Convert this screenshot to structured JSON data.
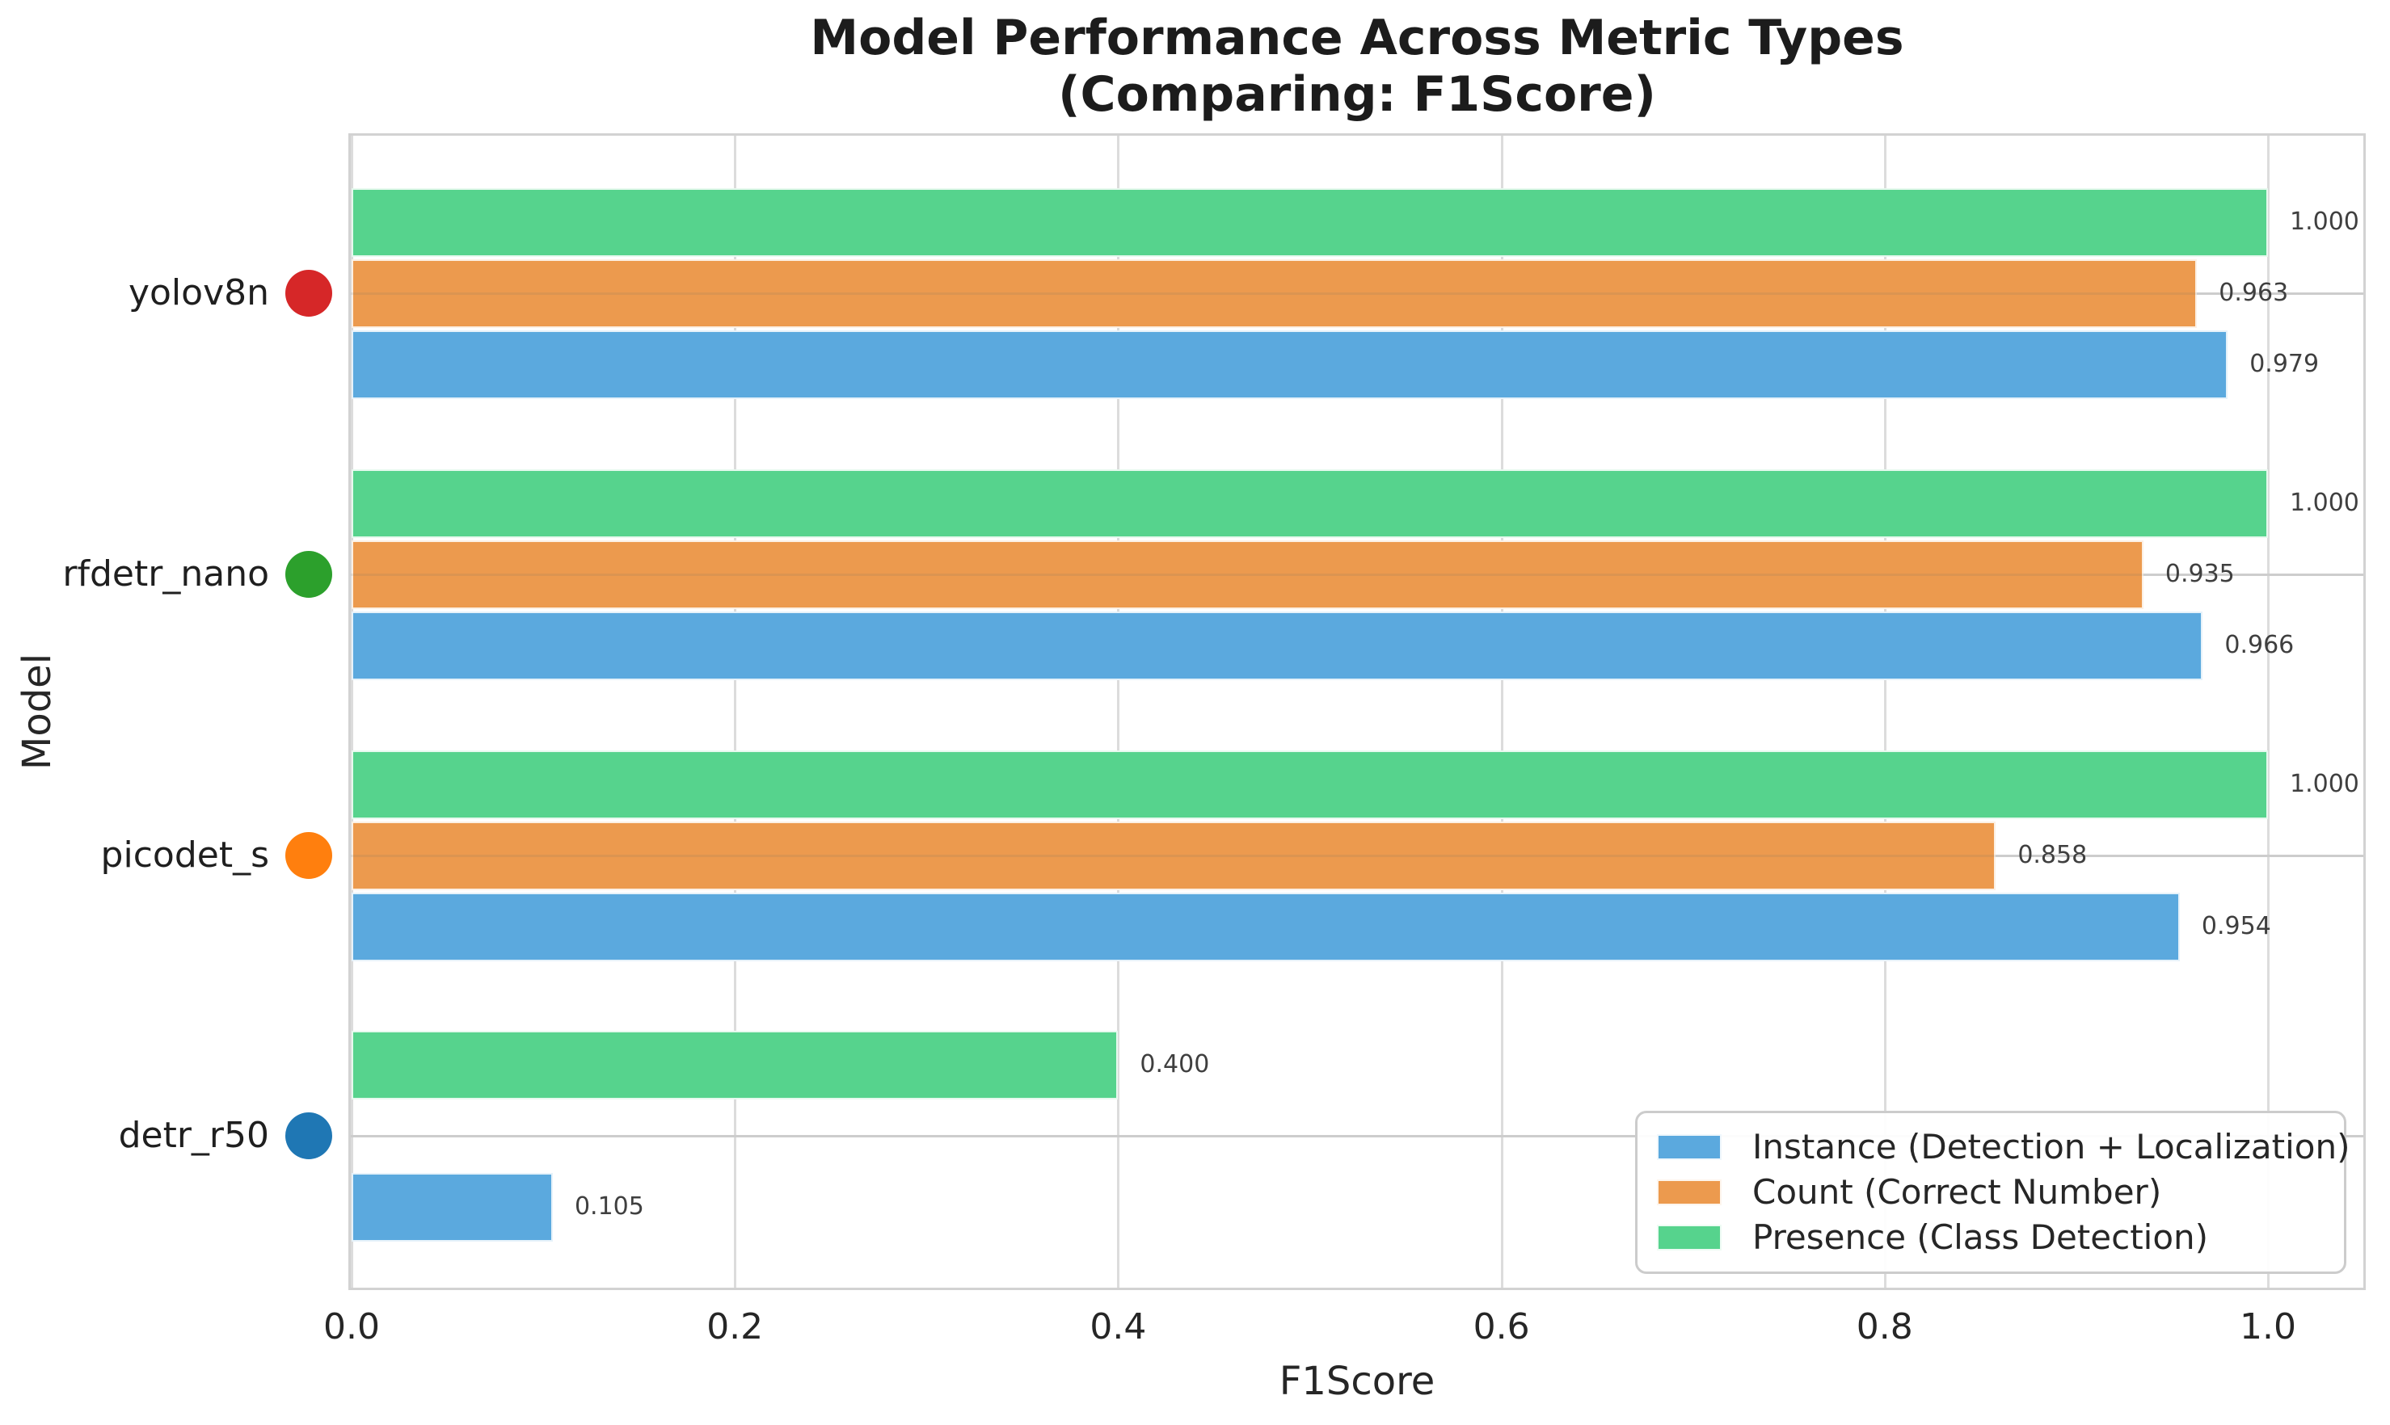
{
  "title": {
    "line1": "Model Performance Across Metric Types",
    "line2": "(Comparing: F1Score)"
  },
  "axes": {
    "xlabel": "F1Score",
    "ylabel": "Model"
  },
  "chart_data": {
    "type": "bar",
    "orientation": "horizontal",
    "title": "Model Performance Across Metric Types (Comparing: F1Score)",
    "xlabel": "F1Score",
    "ylabel": "Model",
    "xlim": [
      0.0,
      1.05
    ],
    "xticks": [
      0.0,
      0.2,
      0.4,
      0.6,
      0.8,
      1.0
    ],
    "xtick_labels": [
      "0.0",
      "0.2",
      "0.4",
      "0.6",
      "0.8",
      "1.0"
    ],
    "grid": true,
    "legend_position": "lower right",
    "categories": [
      "yolov8n",
      "rfdetr_nano",
      "picodet_s",
      "detr_r50"
    ],
    "category_dot_colors": [
      "#d62728",
      "#2ca02c",
      "#ff7f0e",
      "#1f77b4"
    ],
    "bar_row_order_top_to_bottom": [
      "Presence (Class Detection)",
      "Count (Correct Number)",
      "Instance (Detection + Localization)"
    ],
    "series": [
      {
        "name": "Instance (Detection + Localization)",
        "color": "#5BA9DE",
        "values": [
          0.979,
          0.966,
          0.954,
          0.105
        ],
        "labels": [
          "0.979",
          "0.966",
          "0.954",
          "0.105"
        ]
      },
      {
        "name": "Count (Correct Number)",
        "color": "#EC9A4E",
        "values": [
          0.963,
          0.935,
          0.858,
          null
        ],
        "labels": [
          "0.963",
          "0.935",
          "0.858",
          null
        ]
      },
      {
        "name": "Presence (Class Detection)",
        "color": "#56D38D",
        "values": [
          1.0,
          1.0,
          1.0,
          0.4
        ],
        "labels": [
          "1.000",
          "1.000",
          "1.000",
          "0.400"
        ]
      }
    ]
  },
  "colors": {
    "grid": "#dcdcdc",
    "spine": "#d2d2d2",
    "title_text": "#1c1c1c",
    "tick_text": "#262626",
    "value_label_text": "#3f3f3f",
    "background": "#ffffff"
  }
}
